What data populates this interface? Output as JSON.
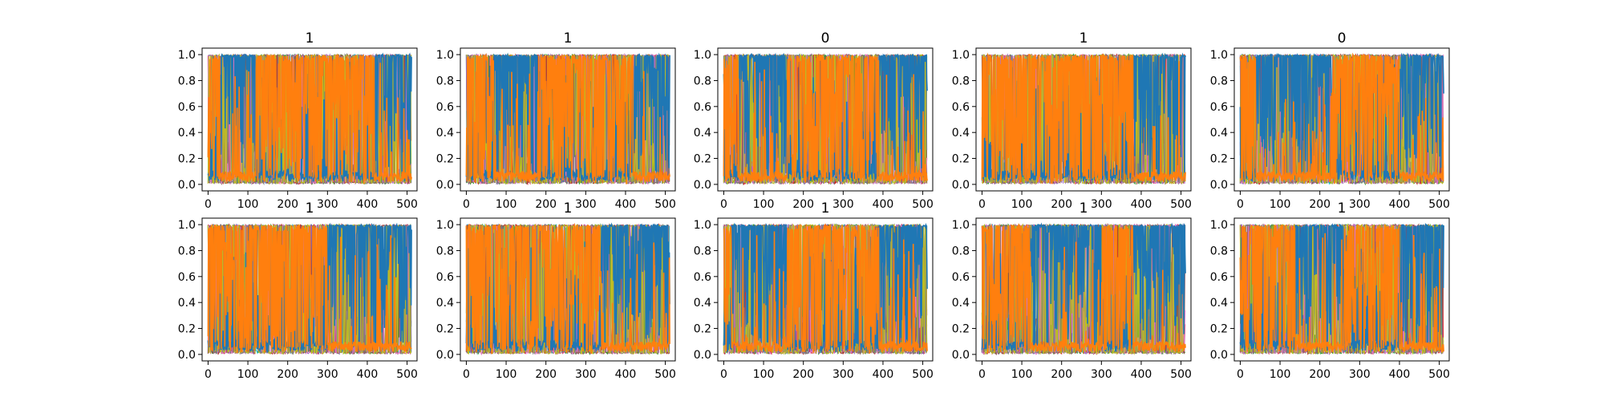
{
  "chart_data": {
    "type": "line",
    "layout": "2x5 small multiples",
    "panel_titles": [
      "1",
      "1",
      "0",
      "1",
      "0",
      "1",
      "1",
      "1",
      "1",
      "1"
    ],
    "xlim": [
      -15,
      525
    ],
    "ylim": [
      -0.05,
      1.05
    ],
    "x_ticks": [
      0,
      100,
      200,
      300,
      400,
      500
    ],
    "y_ticks": [
      0.0,
      0.2,
      0.4,
      0.6,
      0.8,
      1.0
    ],
    "x_tick_labels": [
      "0",
      "100",
      "200",
      "300",
      "400",
      "500"
    ],
    "y_tick_labels": [
      "0.0",
      "0.2",
      "0.4",
      "0.6",
      "0.8",
      "1.0"
    ],
    "samples_per_series": 512,
    "series_colors": [
      "#1f77b4",
      "#ff7f0e",
      "#17becf",
      "#2ca02c",
      "#d62728",
      "#9467bd",
      "#8c564b",
      "#e377c2",
      "#7f7f7f",
      "#bcbd22"
    ],
    "dominant_series": [
      "blue",
      "orange"
    ],
    "panels": [
      {
        "title": "1",
        "orange_segments": [
          [
            0,
            30
          ],
          [
            120,
            420
          ]
        ],
        "blue_segments": [
          [
            30,
            120
          ],
          [
            420,
            512
          ]
        ]
      },
      {
        "title": "1",
        "orange_segments": [
          [
            0,
            70
          ],
          [
            180,
            420
          ]
        ],
        "blue_segments": [
          [
            70,
            180
          ],
          [
            420,
            512
          ]
        ]
      },
      {
        "title": "0",
        "orange_segments": [
          [
            0,
            40
          ],
          [
            160,
            390
          ]
        ],
        "blue_segments": [
          [
            40,
            160
          ],
          [
            390,
            512
          ]
        ]
      },
      {
        "title": "1",
        "orange_segments": [
          [
            0,
            380
          ]
        ],
        "blue_segments": [
          [
            380,
            512
          ]
        ]
      },
      {
        "title": "0",
        "orange_segments": [
          [
            0,
            40
          ],
          [
            230,
            400
          ]
        ],
        "blue_segments": [
          [
            40,
            230
          ],
          [
            400,
            512
          ]
        ]
      },
      {
        "title": "1",
        "orange_segments": [
          [
            0,
            300
          ]
        ],
        "blue_segments": [
          [
            300,
            512
          ]
        ]
      },
      {
        "title": "1",
        "orange_segments": [
          [
            0,
            340
          ]
        ],
        "blue_segments": [
          [
            340,
            512
          ]
        ]
      },
      {
        "title": "1",
        "orange_segments": [
          [
            0,
            20
          ],
          [
            160,
            390
          ]
        ],
        "blue_segments": [
          [
            20,
            160
          ],
          [
            390,
            512
          ]
        ]
      },
      {
        "title": "1",
        "orange_segments": [
          [
            0,
            120
          ],
          [
            300,
            380
          ]
        ],
        "blue_segments": [
          [
            120,
            300
          ],
          [
            380,
            512
          ]
        ]
      },
      {
        "title": "1",
        "orange_segments": [
          [
            0,
            140
          ],
          [
            260,
            400
          ]
        ],
        "blue_segments": [
          [
            140,
            260
          ],
          [
            400,
            512
          ]
        ]
      }
    ]
  }
}
